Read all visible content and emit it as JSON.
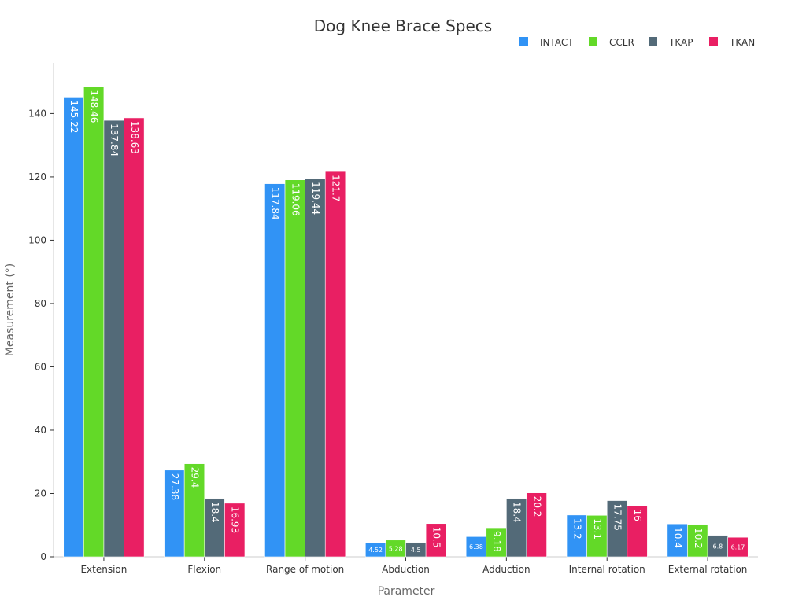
{
  "chart_data": {
    "type": "bar",
    "title": "Dog Knee Brace Specs",
    "xlabel": "Parameter",
    "ylabel": "Measurement (°)",
    "ylim": [
      0,
      156
    ],
    "yticks": [
      0,
      20,
      40,
      60,
      80,
      100,
      120,
      140
    ],
    "grid": false,
    "legend_position": "top-right",
    "categories": [
      "Extension",
      "Flexion",
      "Range of motion",
      "Abduction",
      "Adduction",
      "Internal rotation",
      "External rotation"
    ],
    "series": [
      {
        "name": "INTACT",
        "color": "#3193f5",
        "values": [
          145.22,
          27.38,
          117.84,
          4.52,
          6.38,
          13.2,
          10.4
        ]
      },
      {
        "name": "CCLR",
        "color": "#63d928",
        "values": [
          148.46,
          29.4,
          119.06,
          5.28,
          9.18,
          13.1,
          10.2
        ]
      },
      {
        "name": "TKAP",
        "color": "#536a78",
        "values": [
          137.84,
          18.4,
          119.44,
          4.5,
          18.4,
          17.75,
          6.8
        ]
      },
      {
        "name": "TKAN",
        "color": "#e91f63",
        "values": [
          138.63,
          16.93,
          121.7,
          10.5,
          20.2,
          16.0,
          6.17
        ]
      }
    ]
  }
}
